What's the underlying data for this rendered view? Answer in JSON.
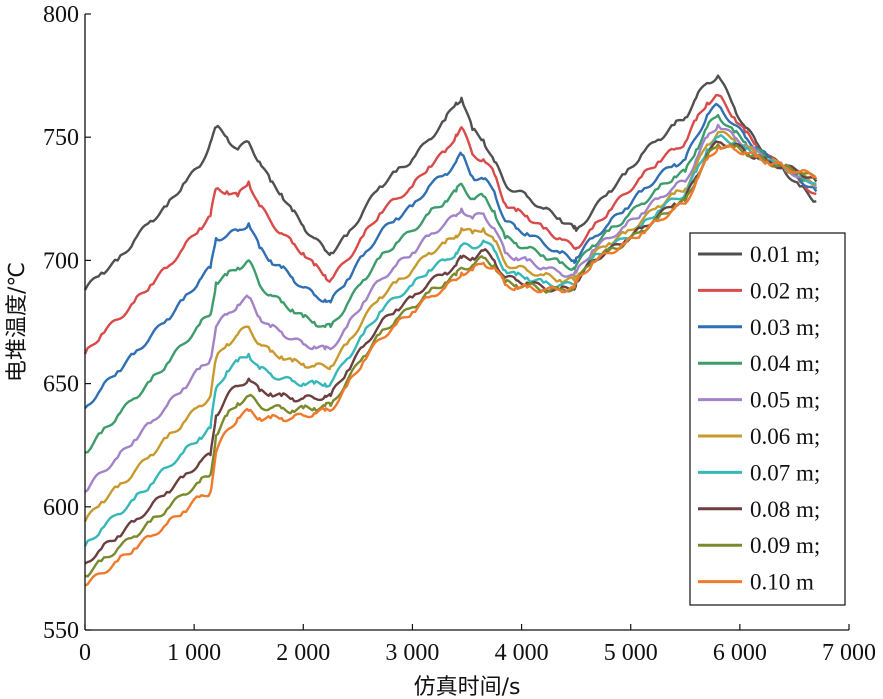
{
  "chart_data": {
    "type": "line",
    "xlabel": "仿真时间/s",
    "ylabel": "电堆温度/℃",
    "xlim": [
      0,
      7000
    ],
    "ylim": [
      550,
      800
    ],
    "x_ticks": [
      0,
      1000,
      2000,
      3000,
      4000,
      5000,
      6000,
      7000
    ],
    "x_tick_labels": [
      "0",
      "1 000",
      "2 000",
      "3 000",
      "4 000",
      "5 000",
      "6 000",
      "7 000"
    ],
    "y_ticks": [
      550,
      600,
      650,
      700,
      750,
      800
    ],
    "y_tick_labels": [
      "550",
      "600",
      "650",
      "700",
      "750",
      "800"
    ],
    "grid": false,
    "legend_position": "right",
    "x": [
      0,
      150,
      300,
      450,
      600,
      750,
      900,
      1050,
      1150,
      1200,
      1300,
      1400,
      1500,
      1600,
      1700,
      1800,
      1900,
      2000,
      2100,
      2200,
      2250,
      2400,
      2550,
      2700,
      2850,
      3000,
      3150,
      3300,
      3400,
      3450,
      3550,
      3650,
      3750,
      3850,
      3950,
      4050,
      4200,
      4350,
      4480,
      4500,
      4650,
      4800,
      4950,
      5100,
      5250,
      5400,
      5500,
      5600,
      5700,
      5800,
      5950,
      6050,
      6150,
      6250,
      6400,
      6550,
      6700
    ],
    "series": [
      {
        "name": "0.01 m;",
        "color": "#505050",
        "values": [
          688,
          695,
          700,
          708,
          716,
          722,
          731,
          738,
          748,
          754,
          750,
          745,
          748,
          740,
          732,
          727,
          720,
          714,
          709,
          704,
          703,
          710,
          720,
          730,
          736,
          741,
          749,
          757,
          764,
          766,
          753,
          749,
          740,
          731,
          728,
          726,
          721,
          717,
          713,
          712,
          720,
          728,
          735,
          743,
          749,
          755,
          758,
          766,
          772,
          775,
          762,
          754,
          748,
          743,
          737,
          730,
          724
        ]
      },
      {
        "name": "0.02 m;",
        "color": "#d94a4a",
        "values": [
          662,
          670,
          676,
          683,
          690,
          697,
          705,
          713,
          718,
          729,
          728,
          726,
          732,
          722,
          716,
          711,
          707,
          703,
          698,
          694,
          692,
          700,
          710,
          719,
          725,
          730,
          738,
          744,
          751,
          754,
          743,
          741,
          735,
          723,
          720,
          718,
          713,
          709,
          705,
          705,
          713,
          720,
          727,
          734,
          740,
          745,
          748,
          757,
          764,
          767,
          758,
          752,
          747,
          742,
          738,
          732,
          727
        ]
      },
      {
        "name": "0.03 m;",
        "color": "#2f6fb2",
        "values": [
          640,
          648,
          655,
          662,
          669,
          676,
          684,
          692,
          697,
          709,
          710,
          712,
          715,
          705,
          700,
          697,
          693,
          689,
          686,
          684,
          683,
          692,
          702,
          711,
          717,
          722,
          730,
          735,
          740,
          743,
          734,
          733,
          728,
          716,
          713,
          711,
          707,
          703,
          700,
          701,
          709,
          715,
          721,
          728,
          734,
          739,
          741,
          750,
          759,
          763,
          755,
          750,
          746,
          742,
          738,
          733,
          728
        ]
      },
      {
        "name": "0.04 m;",
        "color": "#3d9c6b",
        "values": [
          622,
          630,
          637,
          644,
          651,
          658,
          666,
          674,
          678,
          691,
          694,
          697,
          700,
          690,
          686,
          683,
          680,
          677,
          675,
          673,
          673,
          682,
          692,
          701,
          707,
          712,
          719,
          724,
          728,
          731,
          725,
          726,
          720,
          709,
          707,
          705,
          702,
          699,
          697,
          698,
          706,
          712,
          717,
          723,
          729,
          734,
          736,
          745,
          754,
          759,
          752,
          748,
          745,
          741,
          738,
          734,
          729
        ]
      },
      {
        "name": "0.05 m;",
        "color": "#a383c8",
        "values": [
          606,
          614,
          620,
          627,
          634,
          641,
          648,
          656,
          660,
          673,
          678,
          682,
          685,
          677,
          673,
          671,
          668,
          666,
          665,
          664,
          664,
          673,
          683,
          692,
          698,
          703,
          710,
          715,
          718,
          721,
          717,
          719,
          713,
          703,
          701,
          700,
          697,
          695,
          694,
          695,
          704,
          709,
          714,
          719,
          725,
          730,
          732,
          741,
          750,
          755,
          750,
          747,
          744,
          741,
          738,
          734,
          730
        ]
      },
      {
        "name": "0.06 m;",
        "color": "#c89a2e",
        "values": [
          594,
          602,
          608,
          614,
          621,
          628,
          634,
          641,
          645,
          660,
          666,
          670,
          673,
          666,
          663,
          661,
          659,
          658,
          657,
          657,
          657,
          666,
          676,
          685,
          691,
          696,
          703,
          707,
          710,
          713,
          711,
          713,
          708,
          699,
          697,
          696,
          694,
          692,
          692,
          693,
          702,
          707,
          711,
          716,
          722,
          727,
          729,
          738,
          747,
          752,
          749,
          746,
          743,
          741,
          738,
          735,
          731
        ]
      },
      {
        "name": "0.07 m;",
        "color": "#36b8b8",
        "values": [
          584,
          591,
          597,
          603,
          609,
          616,
          622,
          628,
          632,
          648,
          655,
          659,
          662,
          656,
          654,
          652,
          651,
          650,
          650,
          650,
          650,
          660,
          670,
          679,
          685,
          690,
          696,
          700,
          703,
          706,
          705,
          708,
          704,
          696,
          694,
          693,
          691,
          690,
          690,
          692,
          701,
          705,
          709,
          714,
          720,
          725,
          727,
          736,
          745,
          750,
          748,
          745,
          743,
          740,
          738,
          735,
          731
        ]
      },
      {
        "name": "0.08 m;",
        "color": "#6b3f3f",
        "values": [
          577,
          583,
          588,
          594,
          600,
          606,
          612,
          618,
          621,
          637,
          645,
          649,
          652,
          647,
          646,
          645,
          644,
          644,
          644,
          645,
          645,
          655,
          665,
          674,
          680,
          685,
          691,
          695,
          698,
          701,
          701,
          704,
          700,
          693,
          692,
          691,
          689,
          688,
          689,
          691,
          700,
          704,
          708,
          713,
          718,
          723,
          725,
          734,
          743,
          748,
          747,
          744,
          742,
          740,
          738,
          736,
          732
        ]
      },
      {
        "name": "0.09 m;",
        "color": "#7a8a2c",
        "values": [
          572,
          578,
          583,
          588,
          594,
          599,
          605,
          610,
          613,
          629,
          637,
          642,
          645,
          641,
          640,
          640,
          639,
          640,
          640,
          641,
          641,
          651,
          661,
          670,
          676,
          681,
          687,
          691,
          694,
          697,
          698,
          701,
          698,
          691,
          690,
          690,
          688,
          688,
          689,
          691,
          700,
          704,
          707,
          712,
          717,
          722,
          724,
          733,
          742,
          747,
          746,
          744,
          742,
          740,
          738,
          736,
          733
        ]
      },
      {
        "name": "0.10 m",
        "color": "#ef7a2e",
        "values": [
          568,
          573,
          578,
          583,
          588,
          593,
          598,
          604,
          606,
          622,
          631,
          636,
          639,
          636,
          636,
          636,
          636,
          637,
          638,
          639,
          639,
          649,
          659,
          668,
          674,
          679,
          685,
          689,
          692,
          695,
          696,
          699,
          697,
          690,
          689,
          689,
          688,
          688,
          689,
          691,
          699,
          703,
          707,
          711,
          716,
          721,
          723,
          732,
          741,
          746,
          745,
          744,
          742,
          740,
          738,
          736,
          734
        ]
      }
    ]
  }
}
